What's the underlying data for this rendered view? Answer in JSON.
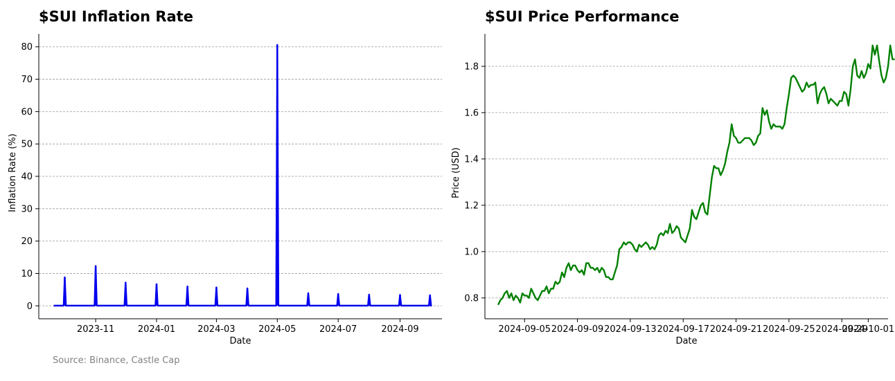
{
  "source_note": "Source: Binance, Castle Cap",
  "chart_data": [
    {
      "type": "line",
      "title": "$SUI Inflation Rate",
      "xlabel": "Date",
      "ylabel": "Inflation Rate (%)",
      "color": "#0000ee",
      "grid": "y-dashed",
      "x_range": [
        "2023-09-05",
        "2024-10-13"
      ],
      "ylim": [
        -4,
        84
      ],
      "yticks": [
        0,
        10,
        20,
        30,
        40,
        50,
        60,
        70,
        80
      ],
      "xticks": [
        {
          "date": "2023-11-01",
          "label": "2023-11"
        },
        {
          "date": "2024-01-01",
          "label": "2024-01"
        },
        {
          "date": "2024-03-01",
          "label": "2024-03"
        },
        {
          "date": "2024-05-01",
          "label": "2024-05"
        },
        {
          "date": "2024-07-01",
          "label": "2024-07"
        },
        {
          "date": "2024-09-01",
          "label": "2024-09"
        }
      ],
      "series_start": "2023-09-20",
      "series_end": "2024-10-01",
      "baseline": 0.05,
      "spikes": [
        {
          "date": "2023-10-01",
          "value": 8.8
        },
        {
          "date": "2023-11-01",
          "value": 12.3
        },
        {
          "date": "2023-12-01",
          "value": 7.2
        },
        {
          "date": "2024-01-01",
          "value": 6.7
        },
        {
          "date": "2024-02-01",
          "value": 6.0
        },
        {
          "date": "2024-03-01",
          "value": 5.7
        },
        {
          "date": "2024-04-01",
          "value": 5.4
        },
        {
          "date": "2024-05-01",
          "value": 80.6
        },
        {
          "date": "2024-06-01",
          "value": 3.9
        },
        {
          "date": "2024-07-01",
          "value": 3.7
        },
        {
          "date": "2024-08-01",
          "value": 3.5
        },
        {
          "date": "2024-09-01",
          "value": 3.4
        },
        {
          "date": "2024-10-01",
          "value": 3.3
        }
      ]
    },
    {
      "type": "line",
      "title": "$SUI Price Performance",
      "xlabel": "Date",
      "ylabel": "Price (USD)",
      "color": "#008000",
      "grid": "y-dashed",
      "x_range": [
        "2024-09-02T00:00",
        "2024-10-02T12:00"
      ],
      "ylim": [
        0.71,
        1.94
      ],
      "yticks": [
        0.8,
        1.0,
        1.2,
        1.4,
        1.6,
        1.8
      ],
      "ytick_labels": [
        "0.8",
        "1.0",
        "1.2",
        "1.4",
        "1.6",
        "1.8"
      ],
      "xticks": [
        {
          "date": "2024-09-05",
          "label": "2024-09-05"
        },
        {
          "date": "2024-09-09",
          "label": "2024-09-09"
        },
        {
          "date": "2024-09-13",
          "label": "2024-09-13"
        },
        {
          "date": "2024-09-17",
          "label": "2024-09-17"
        },
        {
          "date": "2024-09-21",
          "label": "2024-09-21"
        },
        {
          "date": "2024-09-25",
          "label": "2024-09-25"
        },
        {
          "date": "2024-09-29",
          "label": "2024-09-29"
        },
        {
          "date": "2024-10-01",
          "label": "2024-10-01"
        }
      ],
      "series_start": "2024-09-03T00:00",
      "step_hours": 4,
      "prices": [
        0.77,
        0.79,
        0.8,
        0.82,
        0.83,
        0.8,
        0.82,
        0.79,
        0.81,
        0.8,
        0.78,
        0.82,
        0.81,
        0.81,
        0.8,
        0.84,
        0.82,
        0.8,
        0.79,
        0.81,
        0.83,
        0.83,
        0.85,
        0.82,
        0.84,
        0.84,
        0.87,
        0.86,
        0.87,
        0.91,
        0.89,
        0.93,
        0.95,
        0.92,
        0.94,
        0.94,
        0.92,
        0.91,
        0.92,
        0.9,
        0.95,
        0.95,
        0.93,
        0.93,
        0.92,
        0.93,
        0.91,
        0.93,
        0.92,
        0.89,
        0.89,
        0.88,
        0.88,
        0.91,
        0.94,
        1.01,
        1.02,
        1.04,
        1.03,
        1.04,
        1.04,
        1.03,
        1.01,
        1.0,
        1.03,
        1.02,
        1.03,
        1.04,
        1.03,
        1.01,
        1.02,
        1.01,
        1.03,
        1.07,
        1.08,
        1.07,
        1.09,
        1.08,
        1.12,
        1.08,
        1.09,
        1.11,
        1.1,
        1.06,
        1.05,
        1.04,
        1.07,
        1.1,
        1.18,
        1.15,
        1.14,
        1.17,
        1.2,
        1.21,
        1.17,
        1.16,
        1.24,
        1.32,
        1.37,
        1.36,
        1.36,
        1.33,
        1.35,
        1.38,
        1.43,
        1.47,
        1.55,
        1.5,
        1.49,
        1.47,
        1.47,
        1.48,
        1.49,
        1.49,
        1.49,
        1.48,
        1.46,
        1.47,
        1.5,
        1.51,
        1.62,
        1.59,
        1.61,
        1.56,
        1.53,
        1.55,
        1.54,
        1.54,
        1.54,
        1.53,
        1.55,
        1.62,
        1.68,
        1.75,
        1.76,
        1.75,
        1.73,
        1.71,
        1.69,
        1.7,
        1.73,
        1.71,
        1.72,
        1.72,
        1.73,
        1.64,
        1.68,
        1.7,
        1.71,
        1.68,
        1.64,
        1.66,
        1.65,
        1.64,
        1.63,
        1.65,
        1.65,
        1.69,
        1.68,
        1.63,
        1.7,
        1.8,
        1.83,
        1.76,
        1.75,
        1.78,
        1.75,
        1.77,
        1.81,
        1.79,
        1.89,
        1.85,
        1.89,
        1.82,
        1.76,
        1.73,
        1.75,
        1.8,
        1.89,
        1.83,
        1.83
      ]
    }
  ]
}
